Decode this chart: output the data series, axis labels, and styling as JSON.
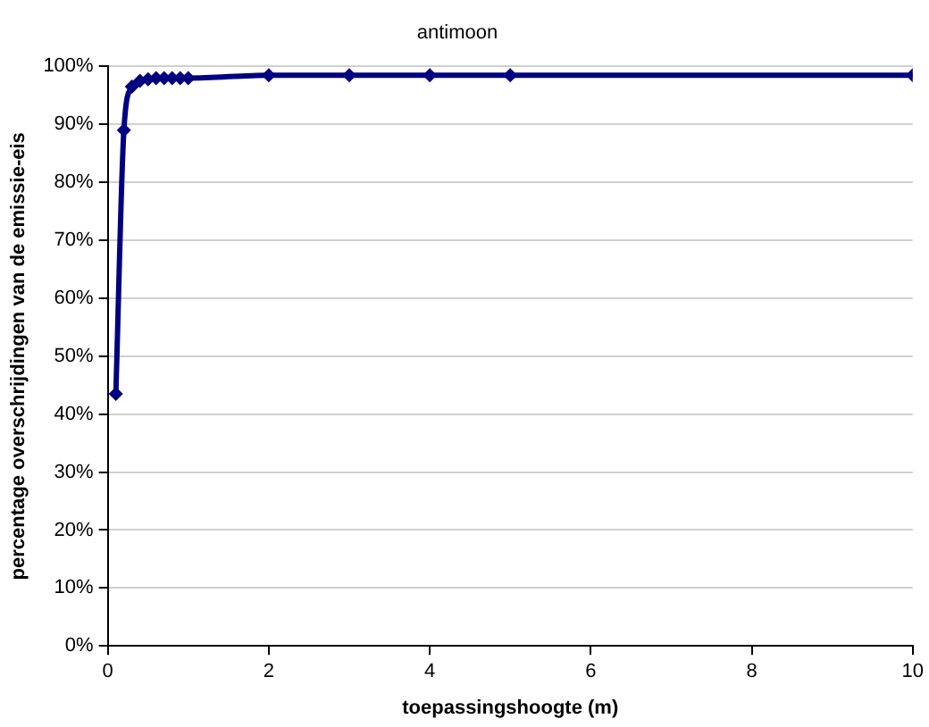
{
  "chart_data": {
    "type": "line",
    "title": "antimoon",
    "xlabel": "toepassingshoogte (m)",
    "ylabel": "percentage overschrijdingen van de emissie-eis",
    "x": [
      0.1,
      0.2,
      0.3,
      0.4,
      0.5,
      0.6,
      0.7,
      0.8,
      0.9,
      1,
      2,
      3,
      4,
      5,
      10
    ],
    "series": [
      {
        "color": "#000080",
        "values": [
          43.5,
          89,
          96.5,
          97.5,
          97.8,
          98,
          98,
          98,
          98,
          98,
          98.5,
          98.5,
          98.5,
          98.5,
          98.5
        ]
      }
    ],
    "xlim": [
      0,
      10
    ],
    "xticks": [
      0,
      2,
      4,
      6,
      8,
      10
    ],
    "ylim": [
      0,
      100
    ],
    "yticks": [
      {
        "value": 0,
        "label": "0%"
      },
      {
        "value": 10,
        "label": "10%"
      },
      {
        "value": 20,
        "label": "20%"
      },
      {
        "value": 30,
        "label": "30%"
      },
      {
        "value": 40,
        "label": "40%"
      },
      {
        "value": 50,
        "label": "50%"
      },
      {
        "value": 60,
        "label": "60%"
      },
      {
        "value": 70,
        "label": "70%"
      },
      {
        "value": 80,
        "label": "80%"
      },
      {
        "value": 90,
        "label": "90%"
      },
      {
        "value": 100,
        "label": "100%"
      }
    ],
    "grid": "y",
    "legend": false,
    "marker": "diamond",
    "line_style": "solid"
  }
}
